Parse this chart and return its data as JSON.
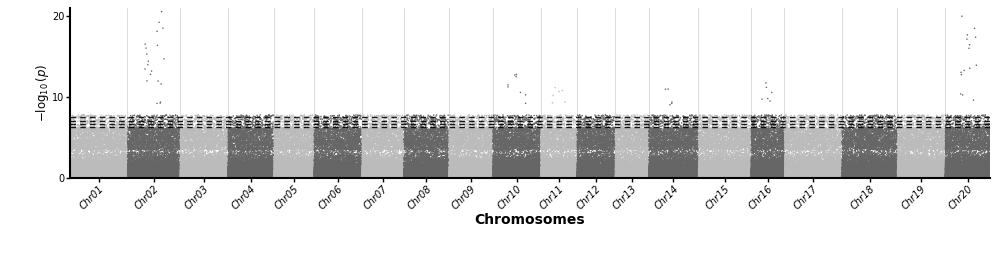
{
  "chromosomes": [
    "Chr01",
    "Chr02",
    "Chr03",
    "Chr04",
    "Chr05",
    "Chr06",
    "Chr07",
    "Chr08",
    "Chr09",
    "Chr10",
    "Chr11",
    "Chr12",
    "Chr13",
    "Chr14",
    "Chr15",
    "Chr16",
    "Chr17",
    "Chr18",
    "Chr19",
    "Chr20"
  ],
  "n_chrs": 20,
  "chr_sizes": [
    60,
    55,
    50,
    48,
    42,
    50,
    44,
    47,
    46,
    50,
    38,
    40,
    35,
    52,
    55,
    35,
    60,
    58,
    50,
    47
  ],
  "color_odd": "#bbbbbb",
  "color_even": "#666666",
  "bg_color": "#ffffff",
  "ylim": [
    0,
    21
  ],
  "yticks": [
    0,
    10,
    20
  ],
  "ylabel": "$-\\log_{10}(p)$",
  "xlabel": "Chromosomes",
  "xlabel_fontsize": 10,
  "ylabel_fontsize": 8.5,
  "tick_fontsize": 7,
  "hlines": [
    6.3,
    6.7,
    7.1,
    7.5
  ],
  "hline_color": "black",
  "hline_lw": 1.0,
  "point_size": 1.2,
  "point_alpha": 1.0,
  "n_snps_per_chr": 12000,
  "seed": 42,
  "peaks": {
    "Chr02": {
      "n": 20,
      "min": 9,
      "max": 22
    },
    "Chr10": {
      "n": 8,
      "min": 9,
      "max": 13
    },
    "Chr11": {
      "n": 6,
      "min": 9,
      "max": 12
    },
    "Chr14": {
      "n": 5,
      "min": 9,
      "max": 11
    },
    "Chr16": {
      "n": 6,
      "min": 9,
      "max": 12
    },
    "Chr20": {
      "n": 15,
      "min": 9,
      "max": 20
    }
  }
}
